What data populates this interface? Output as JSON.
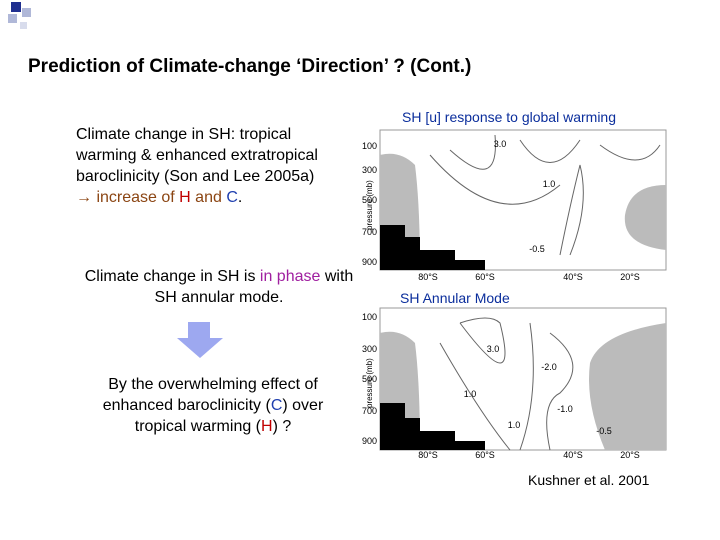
{
  "header": {
    "title": "Prediction of Climate-change ‘Direction’ ? (Cont.)"
  },
  "left": {
    "paragraph_1": [
      "Climate change in SH: tropical warming & enhanced extratropical baroclinicity (Son and Lee 2005a)",
      "→ increase of ",
      "H",
      " and ",
      "C",
      "."
    ],
    "paragraph_2": [
      "Climate change in SH is ",
      "in phase",
      " with SH annular mode."
    ],
    "paragraph_3": [
      "By the overwhelming effect of enhanced baroclinicity (",
      "C",
      ") over tropical warming (",
      "H",
      ") ?"
    ]
  },
  "plots": [
    {
      "title": "SH [u] response to global warming",
      "y_axis_label": "pressure (mb)",
      "y_ticks": [
        "100",
        "300",
        "500",
        "700",
        "900"
      ],
      "x_ticks": [
        "80°S",
        "60°S",
        "40°S",
        "20°S"
      ],
      "contour_labels": [
        "3.0",
        "1.0",
        "-0.5"
      ]
    },
    {
      "title": "SH Annular Mode",
      "y_axis_label": "pressure (mb)",
      "y_ticks": [
        "100",
        "300",
        "500",
        "700",
        "900"
      ],
      "x_ticks": [
        "80°S",
        "60°S",
        "40°S",
        "20°S"
      ],
      "contour_labels": [
        "3.0",
        "1.0",
        "1.0",
        "-2.0",
        "-1.0",
        "-0.5"
      ]
    }
  ],
  "citation": "Kushner et al. 2001"
}
